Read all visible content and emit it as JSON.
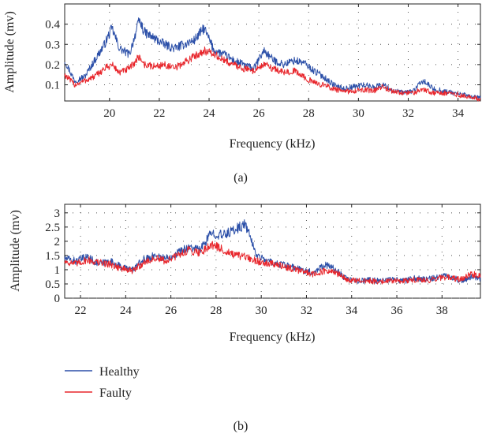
{
  "figure": {
    "panels": [
      {
        "label": "(a)"
      },
      {
        "label": "(b)"
      }
    ],
    "legend": [
      {
        "name": "Healthy",
        "color": "#2b4fa8"
      },
      {
        "name": "Faulty",
        "color": "#e8262c"
      }
    ]
  },
  "chart_data": [
    {
      "type": "line",
      "xlabel": "Frequency (kHz)",
      "ylabel": "Amplitude (mv)",
      "xlim": [
        18.2,
        34.9
      ],
      "ylim": [
        0.02,
        0.5
      ],
      "xticks": [
        20,
        22,
        24,
        26,
        28,
        30,
        32,
        34
      ],
      "yticks": [
        0.1,
        0.2,
        0.3,
        0.4
      ],
      "xtick_labels": [
        "20",
        "22",
        "24",
        "26",
        "28",
        "30",
        "32",
        "34"
      ],
      "ytick_labels": [
        "0.1",
        "0.2",
        "0.3",
        "0.4"
      ],
      "grid": "dotted",
      "series": [
        {
          "name": "Healthy",
          "color": "#2b4fa8",
          "x": [
            18.2,
            18.6,
            19.0,
            19.4,
            19.8,
            20.1,
            20.4,
            20.8,
            21.2,
            21.4,
            21.8,
            22.2,
            22.6,
            23.0,
            23.4,
            23.8,
            24.2,
            24.6,
            25.0,
            25.4,
            25.8,
            26.2,
            26.6,
            27.0,
            27.4,
            27.8,
            28.2,
            28.6,
            29.0,
            29.4,
            29.8,
            30.2,
            30.6,
            31.0,
            31.4,
            31.8,
            32.2,
            32.6,
            33.0,
            33.4,
            33.8,
            34.2,
            34.6,
            34.9
          ],
          "y": [
            0.22,
            0.12,
            0.14,
            0.22,
            0.3,
            0.38,
            0.28,
            0.25,
            0.42,
            0.36,
            0.33,
            0.3,
            0.28,
            0.3,
            0.32,
            0.38,
            0.27,
            0.25,
            0.22,
            0.2,
            0.18,
            0.27,
            0.22,
            0.2,
            0.22,
            0.21,
            0.17,
            0.14,
            0.1,
            0.08,
            0.09,
            0.1,
            0.09,
            0.1,
            0.07,
            0.06,
            0.07,
            0.12,
            0.08,
            0.07,
            0.06,
            0.05,
            0.04,
            0.035
          ]
        },
        {
          "name": "Faulty",
          "color": "#e8262c",
          "x": [
            18.2,
            18.6,
            19.0,
            19.4,
            19.8,
            20.1,
            20.4,
            20.8,
            21.2,
            21.4,
            21.8,
            22.2,
            22.6,
            23.0,
            23.4,
            23.8,
            24.2,
            24.6,
            25.0,
            25.4,
            25.8,
            26.2,
            26.6,
            27.0,
            27.4,
            27.8,
            28.2,
            28.6,
            29.0,
            29.4,
            29.8,
            30.2,
            30.6,
            31.0,
            31.4,
            31.8,
            32.2,
            32.6,
            33.0,
            33.4,
            33.8,
            34.2,
            34.6,
            34.9
          ],
          "y": [
            0.15,
            0.1,
            0.12,
            0.14,
            0.18,
            0.2,
            0.16,
            0.18,
            0.24,
            0.2,
            0.19,
            0.2,
            0.18,
            0.21,
            0.24,
            0.27,
            0.25,
            0.22,
            0.2,
            0.18,
            0.17,
            0.2,
            0.18,
            0.16,
            0.17,
            0.14,
            0.11,
            0.1,
            0.08,
            0.065,
            0.07,
            0.075,
            0.07,
            0.09,
            0.065,
            0.06,
            0.06,
            0.08,
            0.06,
            0.06,
            0.055,
            0.045,
            0.035,
            0.03
          ]
        }
      ]
    },
    {
      "type": "line",
      "xlabel": "Frequency (kHz)",
      "ylabel": "Amplitude (mv)",
      "xlim": [
        21.3,
        39.7
      ],
      "ylim": [
        0,
        3.3
      ],
      "xticks": [
        22,
        24,
        26,
        28,
        30,
        32,
        34,
        36,
        38
      ],
      "yticks": [
        0,
        0.5,
        1,
        1.5,
        2,
        2.5,
        3
      ],
      "xtick_labels": [
        "22",
        "24",
        "26",
        "28",
        "30",
        "32",
        "34",
        "36",
        "38"
      ],
      "ytick_labels": [
        "0",
        "0.5",
        "1",
        "1.5",
        "2",
        "2.5",
        "3"
      ],
      "grid": "dotted",
      "series": [
        {
          "name": "Healthy",
          "color": "#2b4fa8",
          "x": [
            21.3,
            21.8,
            22.3,
            22.8,
            23.3,
            23.8,
            24.3,
            24.8,
            25.3,
            25.8,
            26.3,
            26.8,
            27.3,
            27.8,
            28.3,
            28.8,
            29.3,
            29.8,
            30.3,
            30.8,
            31.3,
            31.8,
            32.3,
            32.8,
            33.3,
            33.8,
            34.3,
            34.8,
            35.3,
            35.8,
            36.3,
            36.8,
            37.3,
            37.8,
            38.3,
            38.8,
            39.3,
            39.7
          ],
          "y": [
            1.4,
            1.3,
            1.45,
            1.2,
            1.3,
            1.1,
            1.0,
            1.35,
            1.5,
            1.4,
            1.6,
            1.8,
            1.7,
            2.3,
            2.2,
            2.4,
            2.6,
            1.5,
            1.3,
            1.2,
            1.1,
            1.0,
            0.9,
            1.2,
            1.0,
            0.65,
            0.6,
            0.65,
            0.6,
            0.65,
            0.6,
            0.7,
            0.65,
            0.75,
            0.8,
            0.6,
            0.75,
            0.7
          ]
        },
        {
          "name": "Faulty",
          "color": "#e8262c",
          "x": [
            21.3,
            21.8,
            22.3,
            22.8,
            23.3,
            23.8,
            24.3,
            24.8,
            25.3,
            25.8,
            26.3,
            26.8,
            27.3,
            27.8,
            28.3,
            28.8,
            29.3,
            29.8,
            30.3,
            30.8,
            31.3,
            31.8,
            32.3,
            32.8,
            33.3,
            33.8,
            34.3,
            34.8,
            35.3,
            35.8,
            36.3,
            36.8,
            37.3,
            37.8,
            38.3,
            38.8,
            39.3,
            39.7
          ],
          "y": [
            1.3,
            1.2,
            1.35,
            1.25,
            1.2,
            1.05,
            0.95,
            1.25,
            1.4,
            1.3,
            1.5,
            1.7,
            1.6,
            1.9,
            1.7,
            1.5,
            1.45,
            1.3,
            1.25,
            1.15,
            1.05,
            0.95,
            0.85,
            0.95,
            0.9,
            0.65,
            0.6,
            0.6,
            0.58,
            0.62,
            0.6,
            0.65,
            0.62,
            0.7,
            0.75,
            0.65,
            0.85,
            0.8
          ]
        }
      ]
    }
  ]
}
